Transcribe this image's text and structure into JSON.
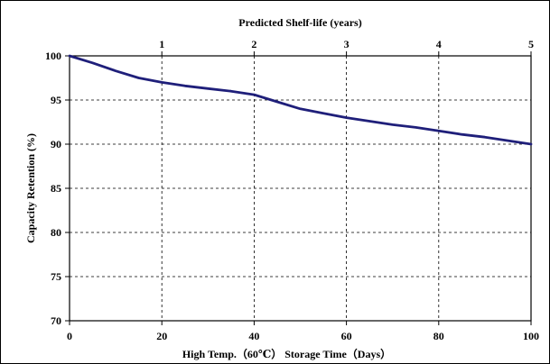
{
  "chart_data": {
    "type": "line",
    "title": "Predicted Shelf-life (years)",
    "xlabel": "High Temp.（60℃） Storage Time（Days）",
    "ylabel": "Capacity Retention (%)",
    "xlim": [
      0,
      100
    ],
    "ylim": [
      70,
      100
    ],
    "x_ticks": [
      0,
      20,
      40,
      60,
      80,
      100
    ],
    "y_ticks": [
      70,
      75,
      80,
      85,
      90,
      95,
      100
    ],
    "top_axis": {
      "label": "Predicted Shelf-life (years)",
      "ticks": [
        1,
        2,
        3,
        4,
        5
      ],
      "positions": [
        20,
        40,
        60,
        80,
        100
      ]
    },
    "grid": true,
    "series": [
      {
        "color": "#1f1f7a",
        "x": [
          0,
          5,
          10,
          15,
          20,
          25,
          30,
          35,
          40,
          45,
          50,
          55,
          60,
          65,
          70,
          75,
          80,
          85,
          90,
          95,
          100
        ],
        "y": [
          100,
          99.2,
          98.3,
          97.5,
          97.0,
          96.6,
          96.3,
          96.0,
          95.6,
          94.8,
          94.0,
          93.5,
          93.0,
          92.6,
          92.2,
          91.9,
          91.5,
          91.1,
          90.8,
          90.4,
          90.0
        ]
      }
    ]
  }
}
